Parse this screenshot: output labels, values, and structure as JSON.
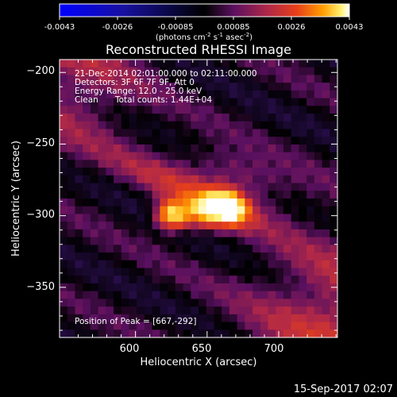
{
  "colorbar": {
    "ticks": [
      "-0.0043",
      "-0.0026",
      "-0.00085",
      "0.00085",
      "0.0026",
      "0.0043"
    ],
    "unit_parts": [
      "(photons cm",
      "-2",
      " s",
      "-1",
      " asec",
      "-2",
      ")"
    ]
  },
  "title": "Reconstructed RHESSI Image",
  "info": {
    "line1": "21-Dec-2014 02:01:00.000 to 02:11:00.000",
    "line2": "Detectors: 3F 6F 7F 9F, Att 0",
    "line3": "Energy Range: 12.0 - 25.0 keV",
    "line4_a": "Clean",
    "line4_b": "Total counts: 1.44E+04"
  },
  "peak_label": "Position of Peak = [667,-292]",
  "footer": "15-Sep-2017 02:07",
  "colors": {
    "background": "#000000",
    "neg_max": "#0000ff",
    "zero": "#000000",
    "pos_low": "#7a1860",
    "pos_mid": "#e03020",
    "pos_high": "#ffc000",
    "pos_max": "#ffffff"
  },
  "chart_data": {
    "type": "heatmap",
    "title": "Reconstructed RHESSI Image",
    "xlabel": "Heliocentric X (arcsec)",
    "ylabel": "Heliocentric Y (arcsec)",
    "xlim": [
      547,
      741
    ],
    "ylim": [
      -385,
      -191
    ],
    "xticks": [
      600,
      650,
      700
    ],
    "xtick_labels": [
      "600",
      "650",
      "700"
    ],
    "yticks": [
      -200,
      -250,
      -300,
      -350
    ],
    "ytick_labels": [
      "−200",
      "−250",
      "−300",
      "−350"
    ],
    "value_range": [
      -0.0043,
      0.0043
    ],
    "colorscale": "RHESSI blue-black-red-yellow-white",
    "peak": {
      "x": 667,
      "y": -292
    },
    "sources": [
      {
        "x": 664,
        "y": -294,
        "amp": 1.0,
        "sigma_along": 10,
        "sigma_across": 8
      },
      {
        "x": 625,
        "y": -300,
        "amp": 0.9,
        "sigma_along": 8,
        "sigma_across": 7
      },
      {
        "x": 645,
        "y": -298,
        "amp": 0.55,
        "sigma_along": 10,
        "sigma_across": 8
      },
      {
        "x": 640,
        "y": -283,
        "amp": 0.3,
        "sigma_along": 40,
        "sigma_across": 9
      },
      {
        "x": 672,
        "y": -270,
        "amp": 0.25,
        "sigma_along": 30,
        "sigma_across": 9
      }
    ],
    "grid": false
  }
}
